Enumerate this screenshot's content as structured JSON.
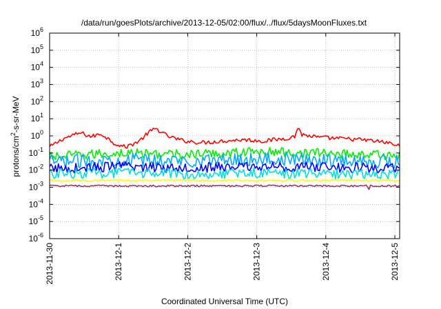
{
  "chart_data": {
    "type": "line",
    "title": "/data/run/goesPlots/archive/2013-12-05/02:00/flux/../flux/5daysMoonFluxes.txt",
    "xlabel": "Coordinated Universal Time (UTC)",
    "ylabel": {
      "prefix": "protons/cm",
      "sup": "2",
      "suffix": "-s-sr-MeV"
    },
    "yscale": "log",
    "ylim_exp": [
      -6,
      6
    ],
    "y_tick_exponents": [
      -6,
      -5,
      -4,
      -3,
      -2,
      -1,
      0,
      1,
      2,
      3,
      4,
      5,
      6
    ],
    "y_tick_base": "10",
    "xlim_days": [
      0,
      5.07
    ],
    "x_ticks": [
      {
        "label": "2013-11-30",
        "day": 0
      },
      {
        "label": "2013-12-1",
        "day": 1
      },
      {
        "label": "2013-12-2",
        "day": 2
      },
      {
        "label": "2013-12-3",
        "day": 3
      },
      {
        "label": "2013-12-4",
        "day": 4
      },
      {
        "label": "2013-12-5",
        "day": 5
      }
    ],
    "grid": true,
    "series": [
      {
        "color": "#ff0000",
        "baseline": 0.6,
        "log_noise": 0.12,
        "points": [
          [
            0,
            0.22
          ],
          [
            0.2,
            0.7
          ],
          [
            0.45,
            1.5
          ],
          [
            0.6,
            0.9
          ],
          [
            0.75,
            1.3
          ],
          [
            0.95,
            0.35
          ],
          [
            1.1,
            0.22
          ],
          [
            1.3,
            0.5
          ],
          [
            1.45,
            1.8
          ],
          [
            1.55,
            2.6
          ],
          [
            1.7,
            1.0
          ],
          [
            1.9,
            0.55
          ],
          [
            2.2,
            0.4
          ],
          [
            2.5,
            0.5
          ],
          [
            2.8,
            0.6
          ],
          [
            3.1,
            0.5
          ],
          [
            3.4,
            0.7
          ],
          [
            3.55,
            0.9
          ],
          [
            3.6,
            3.5
          ],
          [
            3.65,
            1.2
          ],
          [
            3.9,
            0.8
          ],
          [
            4.2,
            0.7
          ],
          [
            4.5,
            0.6
          ],
          [
            4.7,
            0.5
          ],
          [
            4.9,
            0.4
          ],
          [
            5.07,
            0.25
          ]
        ]
      },
      {
        "color": "#00ee00",
        "baseline": 0.1,
        "log_noise": 0.28,
        "points": [
          [
            0,
            0.06
          ],
          [
            1,
            0.1
          ],
          [
            2,
            0.08
          ],
          [
            3,
            0.12
          ],
          [
            4,
            0.1
          ],
          [
            5.07,
            0.07
          ]
        ]
      },
      {
        "color": "#00aaff",
        "baseline": 0.04,
        "log_noise": 0.4,
        "points": [
          [
            0,
            0.03
          ],
          [
            1,
            0.04
          ],
          [
            2,
            0.035
          ],
          [
            3,
            0.045
          ],
          [
            4,
            0.04
          ],
          [
            5.07,
            0.03
          ]
        ]
      },
      {
        "color": "#0000ff",
        "baseline": 0.015,
        "log_noise": 0.3,
        "points": [
          [
            0,
            0.012
          ],
          [
            1,
            0.016
          ],
          [
            2,
            0.014
          ],
          [
            3,
            0.016
          ],
          [
            4,
            0.015
          ],
          [
            5.07,
            0.012
          ]
        ]
      },
      {
        "color": "#00dddd",
        "baseline": 0.006,
        "log_noise": 0.3,
        "points": [
          [
            0,
            0.006
          ],
          [
            1,
            0.007
          ],
          [
            2,
            0.006
          ],
          [
            3,
            0.007
          ],
          [
            4,
            0.006
          ],
          [
            5.07,
            0.006
          ]
        ]
      },
      {
        "color": "#ffff00",
        "baseline": 0.0025,
        "log_noise": 0.05,
        "points": [
          [
            0,
            0.0025
          ],
          [
            5.07,
            0.0025
          ]
        ]
      },
      {
        "color": "#993366",
        "baseline": 0.0012,
        "log_noise": 0.05,
        "points": [
          [
            0,
            0.0012
          ],
          [
            4.6,
            0.0012
          ],
          [
            4.62,
            0.0006
          ],
          [
            4.64,
            0.0012
          ],
          [
            5.07,
            0.0012
          ]
        ]
      }
    ]
  }
}
